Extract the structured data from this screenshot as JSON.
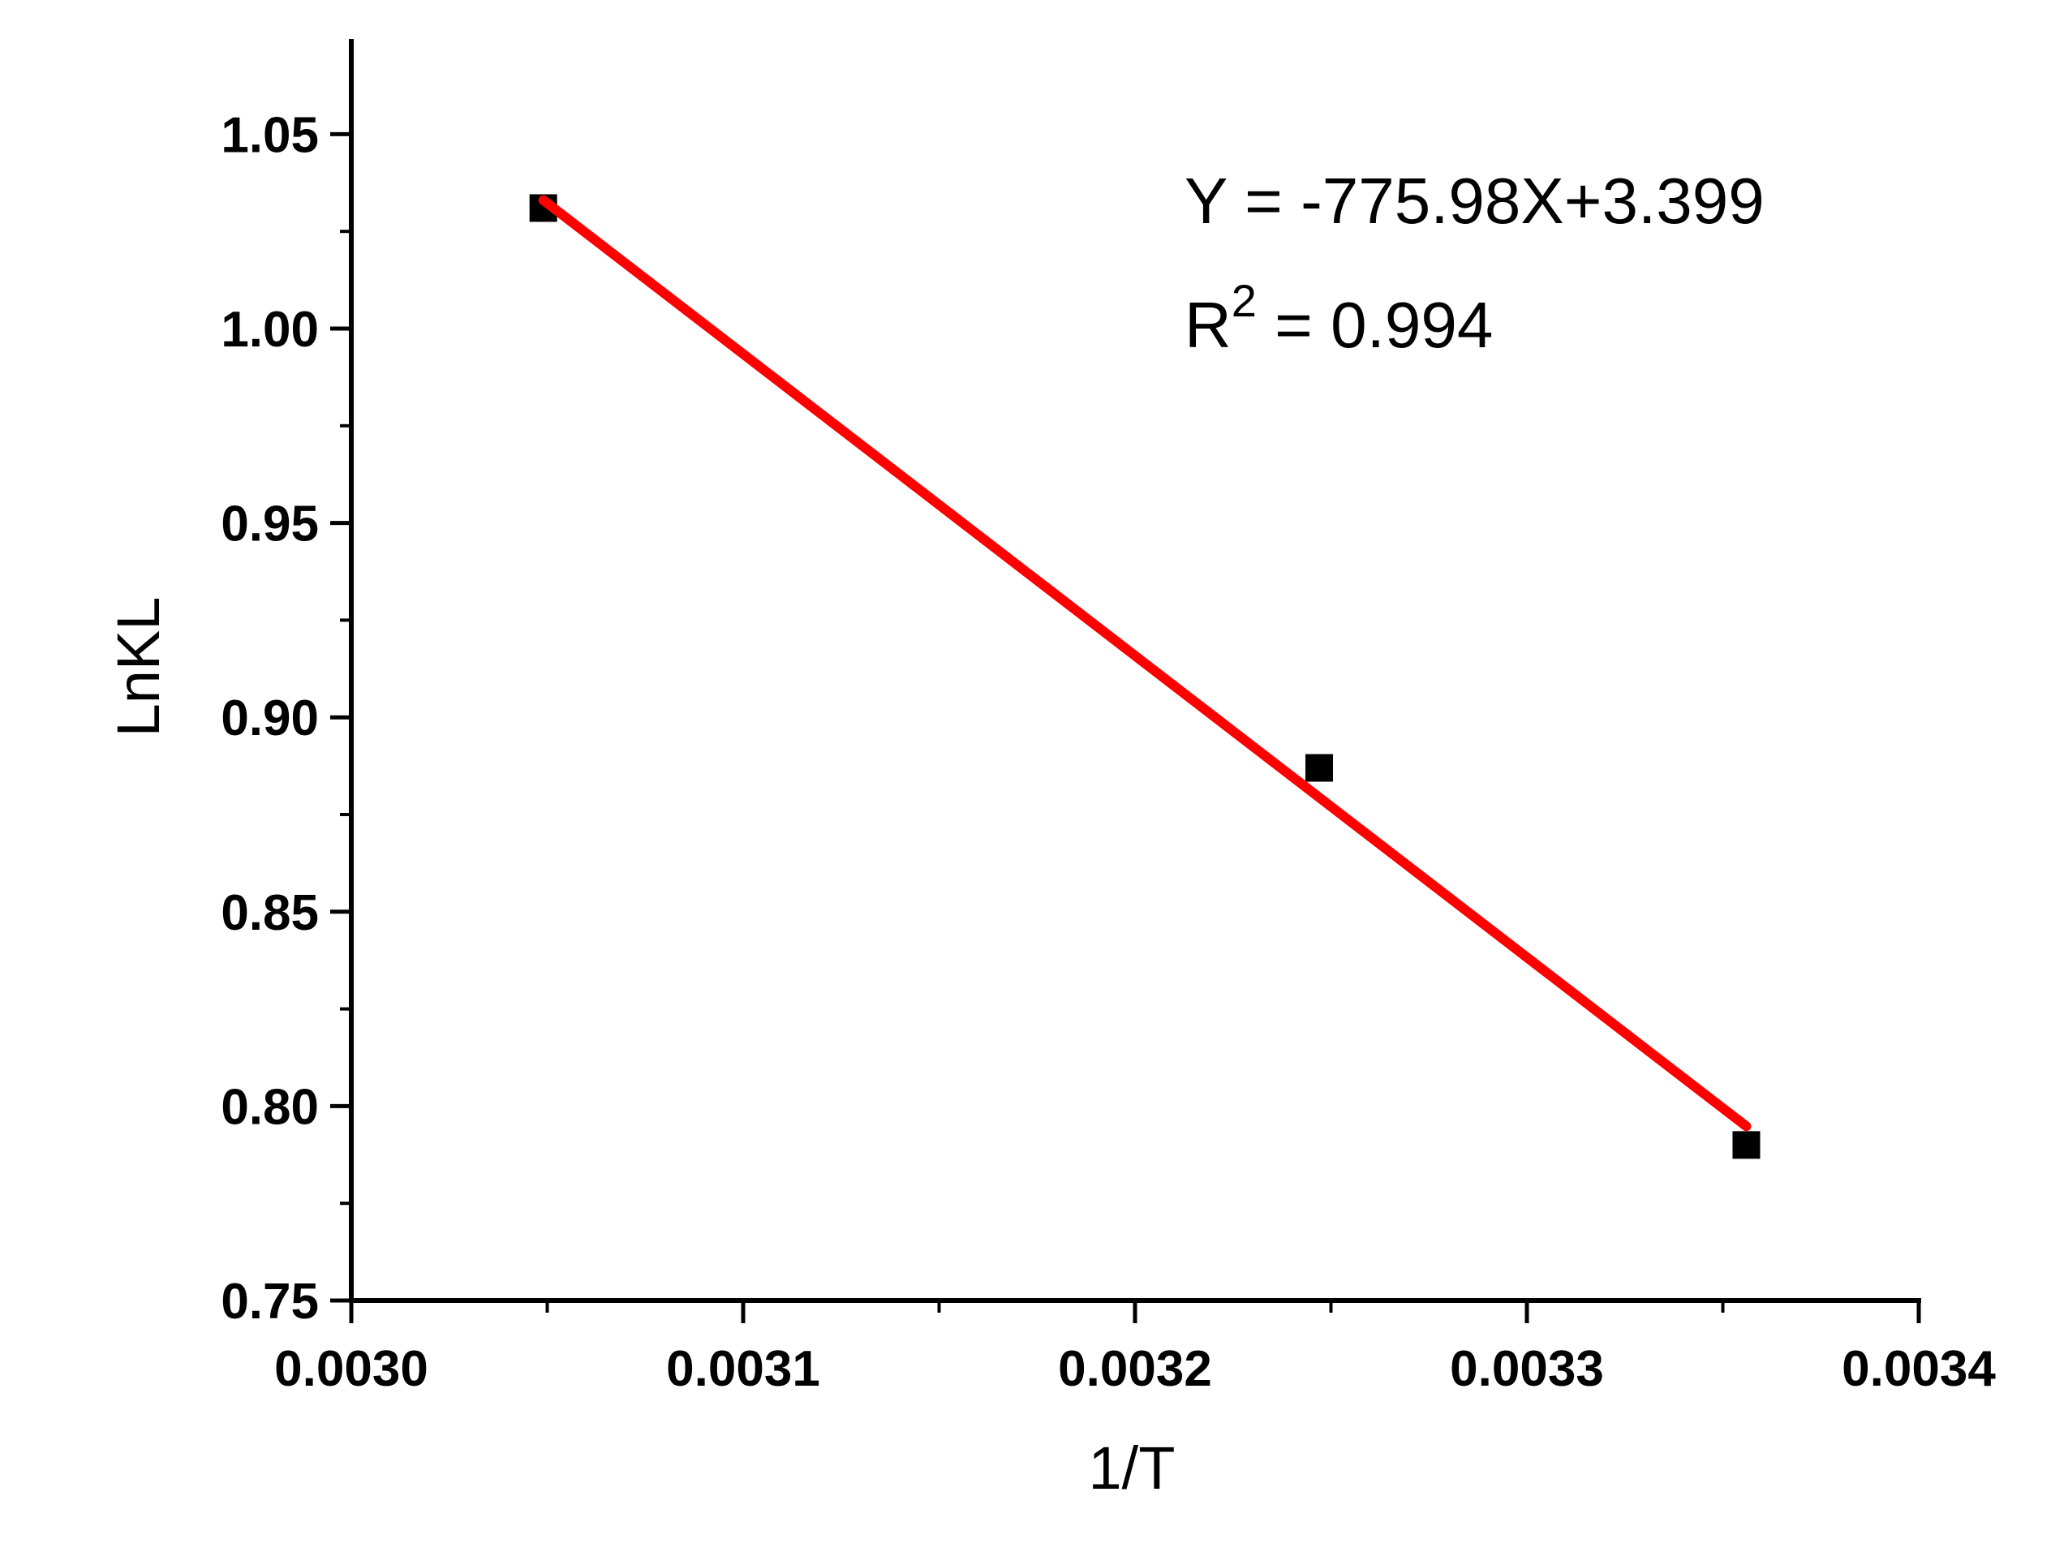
{
  "chart_data": {
    "type": "scatter",
    "xlabel": "1/T",
    "ylabel": "LnKL",
    "xlim": [
      0.003,
      0.0034
    ],
    "ylim": [
      0.75,
      1.075
    ],
    "x_ticks": [
      "0.0030",
      "0.0031",
      "0.0032",
      "0.0033",
      "0.0034"
    ],
    "y_ticks": [
      "0.75",
      "0.80",
      "0.85",
      "0.90",
      "0.95",
      "1.00",
      "1.05"
    ],
    "grid": false,
    "series": [
      {
        "type": "scatter",
        "marker": "square",
        "color": "#000000",
        "points": [
          {
            "x": 0.003049,
            "y": 1.031
          },
          {
            "x": 0.003247,
            "y": 0.887
          },
          {
            "x": 0.003356,
            "y": 0.79
          }
        ]
      },
      {
        "type": "line",
        "color": "#ff0000",
        "slope": -775.98,
        "intercept": 3.399,
        "x_range": [
          0.003049,
          0.003356
        ]
      }
    ],
    "annotations": {
      "equation": "Y = -775.98X+3.399",
      "r2_prefix": "R",
      "r2_exponent": "2",
      "r2_value": " = 0.994"
    }
  }
}
